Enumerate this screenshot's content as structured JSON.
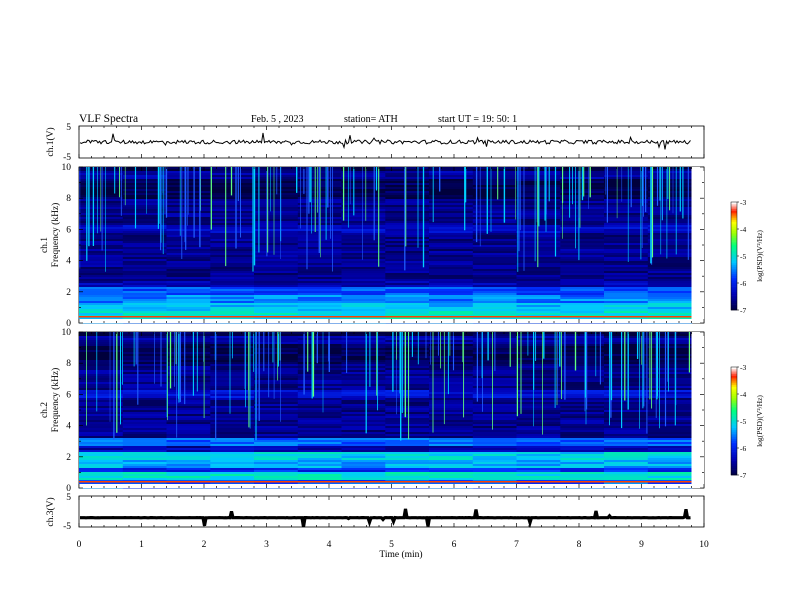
{
  "header": {
    "title": "VLF  Spectra",
    "date": "Feb. 5  , 2023",
    "station": "station= ATH",
    "start_ut": "start  UT  =   19: 50: 1"
  },
  "chart_data": [
    {
      "type": "line",
      "id": "ch1-waveform",
      "ylabel": "ch.1(V)",
      "ylim": [
        -5,
        5
      ],
      "y_ticks": [
        "5",
        "-5"
      ],
      "xlim": [
        0,
        10
      ],
      "baseline": 0,
      "color": "#000000"
    },
    {
      "type": "heatmap",
      "id": "ch1-spectrogram",
      "ylabel": "Frequency (kHz)",
      "channel_label": "ch.1",
      "ylim": [
        0,
        10
      ],
      "y_ticks": [
        "0",
        "2",
        "4",
        "6",
        "8",
        "10"
      ],
      "xlim": [
        0,
        9.8
      ],
      "colorbar": {
        "label": "log(PSD)(V²/Hz)",
        "range": [
          -7,
          -3
        ],
        "ticks": [
          "-3",
          "-4",
          "-5",
          "-6",
          "-7"
        ]
      },
      "bands": [
        {
          "f": 0.5,
          "intensity": -5.0
        },
        {
          "f": 1.0,
          "intensity": -5.2
        },
        {
          "f": 1.5,
          "intensity": -5.5
        },
        {
          "f": 2.0,
          "intensity": -5.7
        },
        {
          "f": 4.0,
          "intensity": -6.8
        },
        {
          "f": 6.0,
          "intensity": -6.3
        },
        {
          "f": 9.5,
          "intensity": -6.5
        }
      ]
    },
    {
      "type": "heatmap",
      "id": "ch2-spectrogram",
      "ylabel": "Frequency (kHz)",
      "channel_label": "ch.2",
      "ylim": [
        0,
        10
      ],
      "y_ticks": [
        "0",
        "2",
        "4",
        "6",
        "8",
        "10"
      ],
      "xlim": [
        0,
        9.8
      ],
      "colorbar": {
        "label": "log(PSD)(V²/Hz)",
        "range": [
          -7,
          -3
        ],
        "ticks": [
          "-3",
          "-4",
          "-5",
          "-6",
          "-7"
        ]
      },
      "bands": [
        {
          "f": 0.8,
          "intensity": -5.0
        },
        {
          "f": 1.5,
          "intensity": -5.3
        },
        {
          "f": 2.0,
          "intensity": -5.1
        },
        {
          "f": 3.0,
          "intensity": -5.6
        },
        {
          "f": 6.0,
          "intensity": -6.2
        },
        {
          "f": 9.5,
          "intensity": -6.5
        }
      ]
    },
    {
      "type": "line",
      "id": "ch3-waveform",
      "ylabel": "ch.3(V)",
      "ylim": [
        -5,
        5
      ],
      "y_ticks": [
        "5",
        "-5"
      ],
      "xlim": [
        0,
        10
      ],
      "baseline": -2,
      "color": "#000000"
    }
  ],
  "x_axis": {
    "label": "Time  (min)",
    "range": [
      0,
      10
    ],
    "ticks": [
      "0",
      "1",
      "2",
      "3",
      "4",
      "5",
      "6",
      "7",
      "8",
      "9",
      "10"
    ]
  },
  "colors": {
    "colormap": [
      "#000000",
      "#00008b",
      "#0000ff",
      "#00bfff",
      "#00ff7f",
      "#ffff00",
      "#ff0000",
      "#ffffff"
    ]
  }
}
